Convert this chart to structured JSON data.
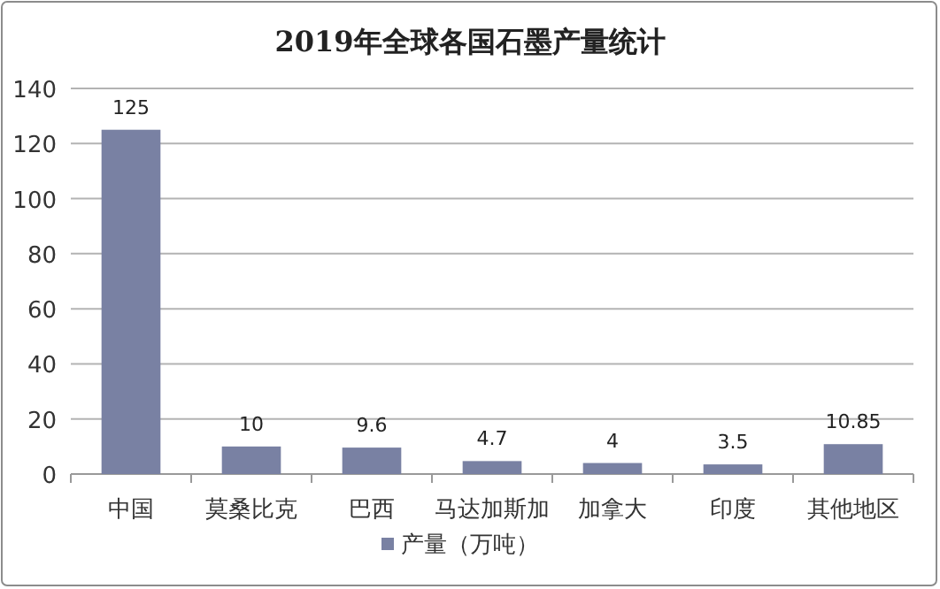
{
  "chart_data": {
    "type": "bar",
    "title": "2019年全球各国石墨产量统计",
    "categories": [
      "中国",
      "莫桑比克",
      "巴西",
      "马达加斯加",
      "加拿大",
      "印度",
      "其他地区"
    ],
    "series": [
      {
        "name": "产量（万吨）",
        "color": "#7981a3",
        "values": [
          125,
          10,
          9.6,
          4.7,
          4,
          3.5,
          10.85
        ]
      }
    ],
    "ylim": [
      0,
      140
    ],
    "yticks": [
      0,
      20,
      40,
      60,
      80,
      100,
      120,
      140
    ],
    "grid": "y",
    "legend": "bottom",
    "data_labels": true
  }
}
